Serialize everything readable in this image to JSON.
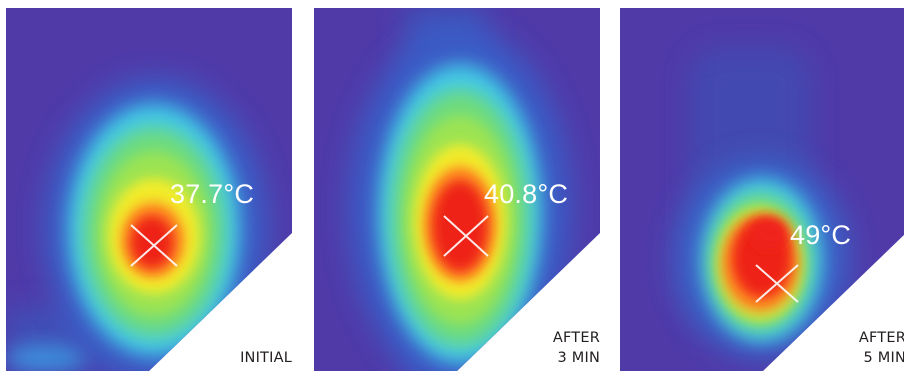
{
  "panels": [
    {
      "temperature": "37.7°C",
      "caption_lines": [
        "INITIAL"
      ]
    },
    {
      "temperature": "40.8°C",
      "caption_lines": [
        "AFTER",
        "3 MIN"
      ]
    },
    {
      "temperature": "49°C",
      "caption_lines": [
        "AFTER",
        "5 MIN"
      ]
    }
  ],
  "colors": {
    "background": "#4f3aa8",
    "cool_blue": "#3b6fd8",
    "cyan": "#42d6e6",
    "green": "#7fe15c",
    "yellow": "#f4ee2e",
    "orange": "#ff8a22",
    "hot_red": "#f0221a"
  }
}
